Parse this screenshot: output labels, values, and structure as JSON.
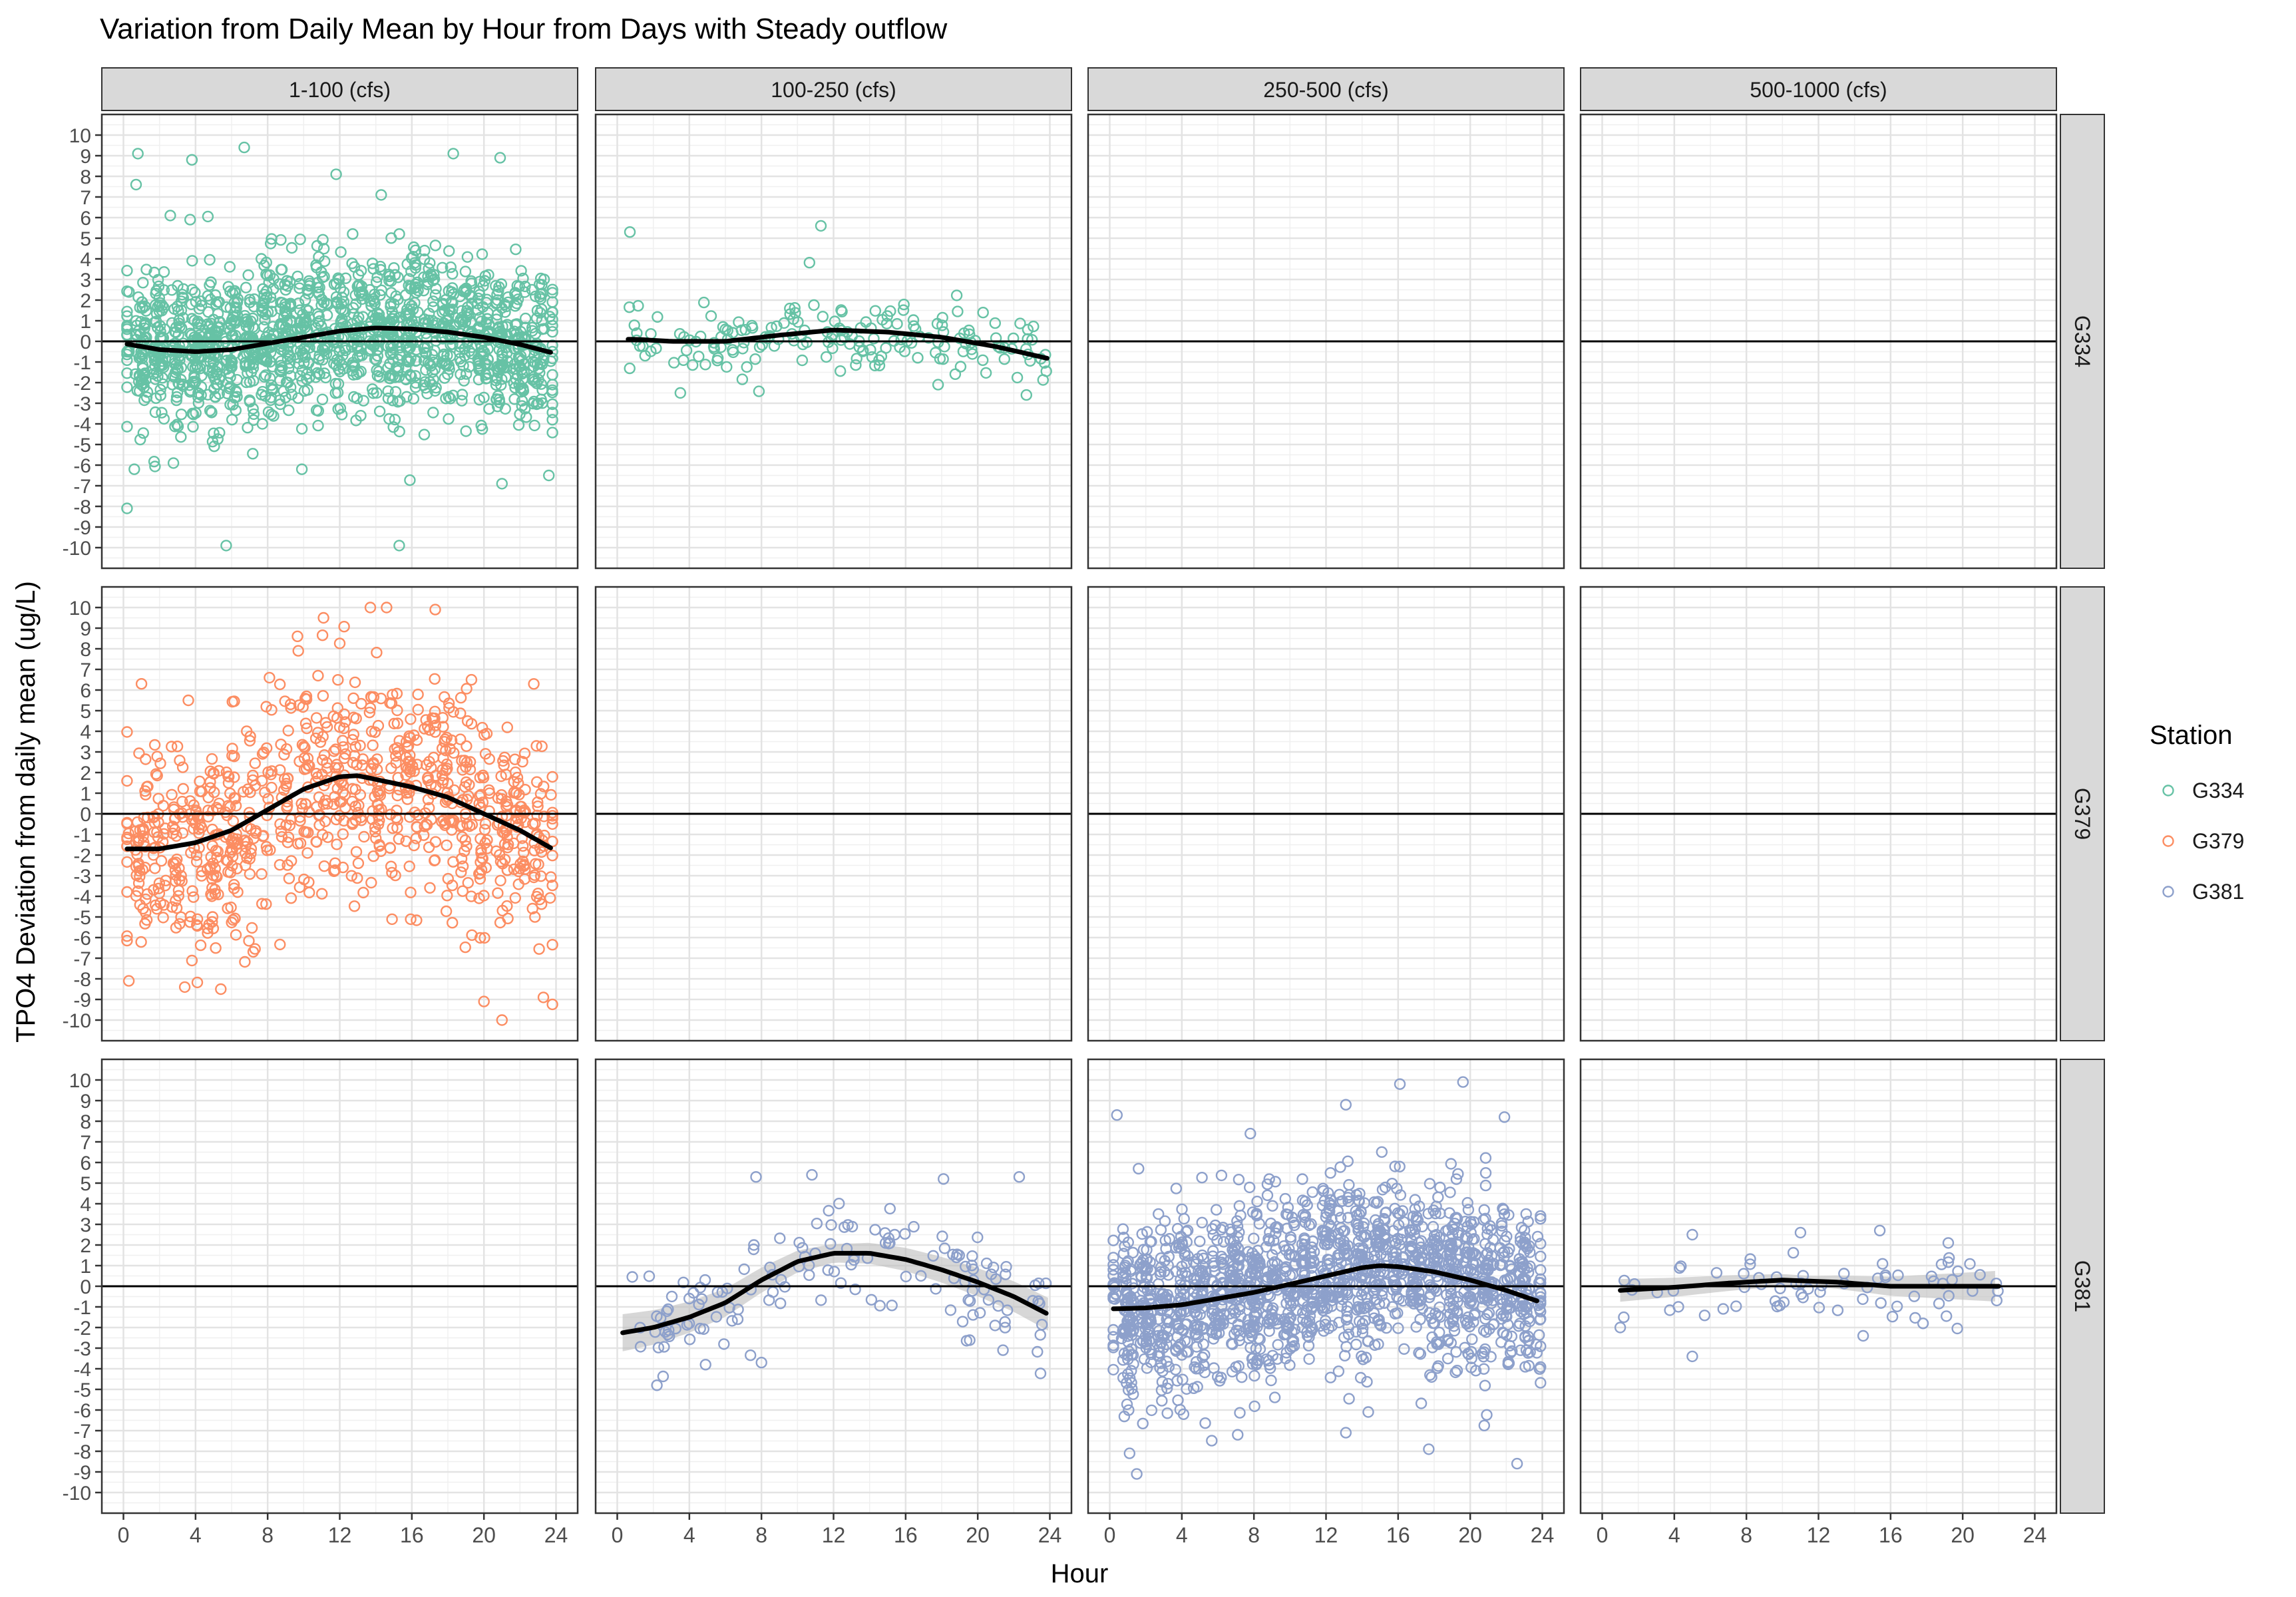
{
  "chart_data": {
    "type": "scatter",
    "title": "Variation from Daily Mean by Hour from Days with Steady outflow",
    "xlabel": "Hour",
    "ylabel": "TPO4 Deviation from daily mean (ug/L)",
    "xlim": [
      -1.2,
      25.2
    ],
    "ylim": [
      -11,
      11
    ],
    "x_ticks": [
      0,
      4,
      8,
      12,
      16,
      20,
      24
    ],
    "y_ticks": [
      -10,
      -9,
      -8,
      -7,
      -6,
      -5,
      -4,
      -3,
      -2,
      -1,
      0,
      1,
      2,
      3,
      4,
      5,
      6,
      7,
      8,
      9,
      10
    ],
    "grid": true,
    "reference_line_y": 0,
    "legend": {
      "title": "Station",
      "placement": "right",
      "entries": [
        {
          "label": "G334",
          "color": "#66C2A5"
        },
        {
          "label": "G379",
          "color": "#FC8D62"
        },
        {
          "label": "G381",
          "color": "#8DA0CB"
        }
      ]
    },
    "col_facets": [
      "1-100 (cfs)",
      "100-250 (cfs)",
      "250-500 (cfs)",
      "500-1000 (cfs)"
    ],
    "row_facets": [
      "G334",
      "G379",
      "G381"
    ],
    "panels": [
      {
        "row": 0,
        "col": 0,
        "station": "G334",
        "flow": "1-100 (cfs)",
        "x_range": [
          0.2,
          23.8
        ],
        "spread": 1.9,
        "n_points": 1500,
        "smooth_x": [
          0,
          2,
          4,
          6,
          8,
          10,
          12,
          14,
          16,
          18,
          20,
          22,
          24
        ],
        "smooth_y": [
          -0.1,
          -0.4,
          -0.5,
          -0.4,
          -0.1,
          0.2,
          0.5,
          0.65,
          0.6,
          0.45,
          0.2,
          -0.15,
          -0.6
        ],
        "outliers": [
          [
            0.8,
            9.1
          ],
          [
            0.7,
            7.6
          ],
          [
            3.8,
            8.8
          ],
          [
            6.7,
            9.4
          ],
          [
            18.3,
            9.1
          ],
          [
            20.9,
            8.9
          ],
          [
            5.7,
            -9.9
          ],
          [
            15.3,
            -9.9
          ],
          [
            21,
            -6.9
          ],
          [
            0.6,
            -6.2
          ],
          [
            9.9,
            -6.2
          ],
          [
            23.6,
            -6.5
          ],
          [
            2.6,
            6.1
          ],
          [
            3.7,
            5.9
          ],
          [
            11.8,
            8.1
          ],
          [
            14.3,
            7.1
          ]
        ]
      },
      {
        "row": 0,
        "col": 1,
        "station": "G334",
        "flow": "100-250 (cfs)",
        "x_range": [
          0.6,
          24
        ],
        "spread": 0.9,
        "n_points": 180,
        "smooth_x": [
          1,
          3,
          6,
          9,
          12,
          15,
          18,
          21,
          24
        ],
        "smooth_y": [
          0.1,
          0.0,
          0.0,
          0.3,
          0.55,
          0.45,
          0.2,
          -0.25,
          -0.85
        ],
        "outliers": [
          [
            0.7,
            5.3
          ],
          [
            11.3,
            5.6
          ],
          [
            3.5,
            -2.5
          ],
          [
            22.7,
            -2.6
          ],
          [
            17.8,
            -2.1
          ]
        ]
      },
      {
        "row": 0,
        "col": 2,
        "station": "G334",
        "flow": "250-500 (cfs)",
        "n_points": 0
      },
      {
        "row": 0,
        "col": 3,
        "station": "G334",
        "flow": "500-1000 (cfs)",
        "n_points": 0
      },
      {
        "row": 1,
        "col": 0,
        "station": "G379",
        "flow": "1-100 (cfs)",
        "x_range": [
          0.2,
          23.8
        ],
        "spread": 2.6,
        "n_points": 900,
        "smooth_x": [
          0,
          2,
          4,
          6,
          8,
          10,
          12,
          13,
          16,
          18,
          20,
          22,
          24
        ],
        "smooth_y": [
          -1.7,
          -1.7,
          -1.4,
          -0.8,
          0.2,
          1.2,
          1.8,
          1.85,
          1.3,
          0.8,
          0.0,
          -0.8,
          -1.8
        ],
        "outliers": [
          [
            13.7,
            10.0
          ],
          [
            14.6,
            10.0
          ],
          [
            17.3,
            9.9
          ],
          [
            11.1,
            9.5
          ],
          [
            0.3,
            -8.1
          ],
          [
            3.4,
            -8.4
          ],
          [
            5.4,
            -8.5
          ],
          [
            20,
            -9.1
          ],
          [
            21,
            -10.0
          ],
          [
            23.3,
            -8.9
          ],
          [
            1,
            6.3
          ],
          [
            3.6,
            5.5
          ],
          [
            9.7,
            7.9
          ],
          [
            8.1,
            6.6
          ]
        ]
      },
      {
        "row": 1,
        "col": 1,
        "station": "G379",
        "flow": "100-250 (cfs)",
        "n_points": 0
      },
      {
        "row": 1,
        "col": 2,
        "station": "G379",
        "flow": "250-500 (cfs)",
        "n_points": 0
      },
      {
        "row": 1,
        "col": 3,
        "station": "G379",
        "flow": "500-1000 (cfs)",
        "n_points": 0
      },
      {
        "row": 2,
        "col": 0,
        "station": "G381",
        "flow": "1-100 (cfs)",
        "n_points": 0
      },
      {
        "row": 2,
        "col": 1,
        "station": "G381",
        "flow": "100-250 (cfs)",
        "x_range": [
          0.3,
          24
        ],
        "spread": 1.2,
        "n_points": 140,
        "band": [
          0.9,
          0.45,
          0.8
        ],
        "smooth_x": [
          0,
          2,
          4,
          6,
          8,
          10,
          12,
          14,
          16,
          18,
          20,
          22,
          24
        ],
        "smooth_y": [
          -2.3,
          -2.0,
          -1.5,
          -0.8,
          0.3,
          1.2,
          1.6,
          1.6,
          1.3,
          0.8,
          0.2,
          -0.5,
          -1.4
        ],
        "outliers": [
          [
            7.7,
            5.3
          ],
          [
            10.8,
            5.4
          ],
          [
            18.1,
            5.2
          ],
          [
            22.3,
            5.3
          ],
          [
            2.2,
            -4.8
          ],
          [
            4.9,
            -3.8
          ],
          [
            8,
            -3.7
          ],
          [
            21.4,
            -3.1
          ]
        ]
      },
      {
        "row": 2,
        "col": 2,
        "station": "G381",
        "flow": "250-500 (cfs)",
        "x_range": [
          0.2,
          23.9
        ],
        "spread": 2.0,
        "n_points": 1700,
        "smooth_x": [
          0,
          2,
          4,
          6,
          8,
          10,
          12,
          14,
          15,
          16,
          18,
          20,
          22,
          24
        ],
        "smooth_y": [
          -1.1,
          -1.05,
          -0.9,
          -0.6,
          -0.3,
          0.1,
          0.5,
          0.9,
          1.0,
          0.95,
          0.7,
          0.3,
          -0.2,
          -0.8
        ],
        "outliers": [
          [
            0.4,
            8.3
          ],
          [
            1.6,
            5.7
          ],
          [
            7.8,
            7.4
          ],
          [
            13.1,
            8.8
          ],
          [
            16.1,
            9.8
          ],
          [
            19.6,
            9.9
          ],
          [
            21.9,
            8.2
          ],
          [
            1.5,
            -9.1
          ],
          [
            1.1,
            -8.1
          ],
          [
            13.1,
            -7.1
          ],
          [
            17.7,
            -7.9
          ],
          [
            22.6,
            -8.6
          ],
          [
            7.1,
            -7.2
          ]
        ]
      },
      {
        "row": 2,
        "col": 3,
        "station": "G381",
        "flow": "500-1000 (cfs)",
        "x_range": [
          1,
          22
        ],
        "spread": 0.9,
        "n_points": 70,
        "band": [
          0.55,
          0.25,
          0.75
        ],
        "smooth_x": [
          1,
          4,
          7,
          10,
          13,
          16,
          19,
          22
        ],
        "smooth_y": [
          -0.2,
          -0.05,
          0.15,
          0.3,
          0.2,
          0.0,
          0.0,
          0.0
        ],
        "outliers": [
          [
            5,
            2.5
          ],
          [
            11,
            2.6
          ],
          [
            15.4,
            2.7
          ],
          [
            19.2,
            2.1
          ],
          [
            5,
            -3.4
          ],
          [
            1,
            -2.0
          ],
          [
            17.8,
            -1.8
          ]
        ]
      }
    ]
  }
}
